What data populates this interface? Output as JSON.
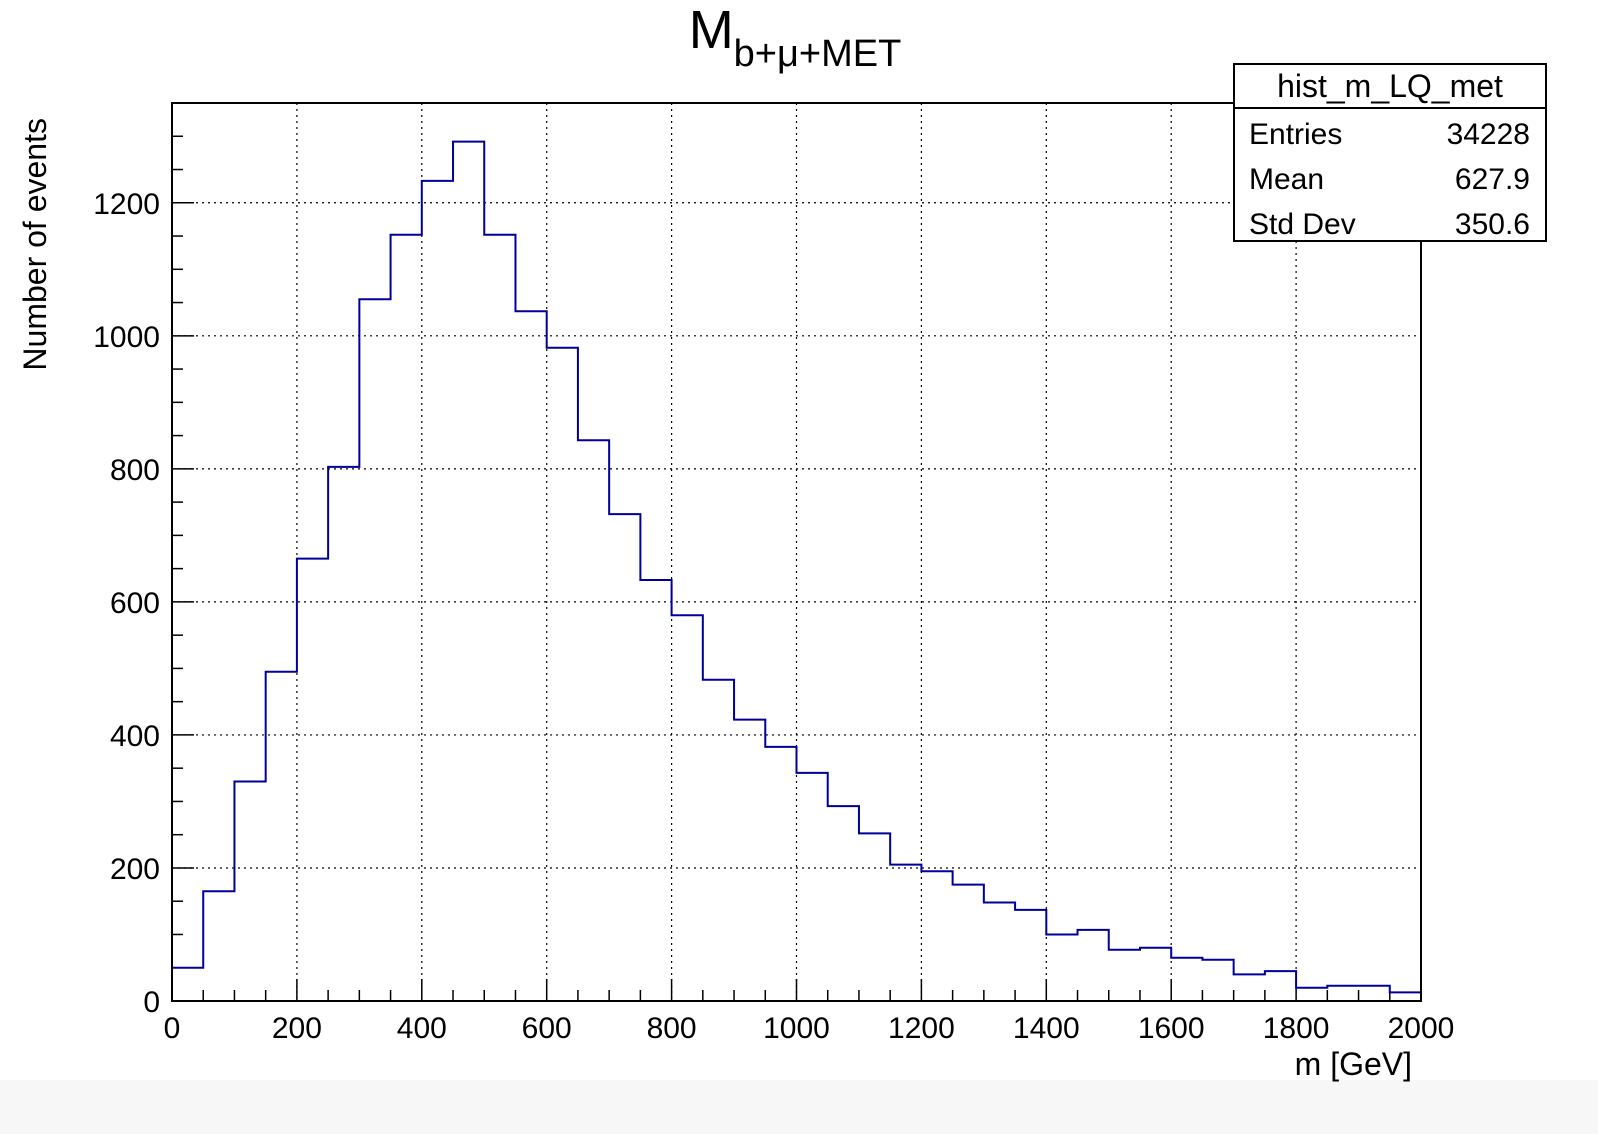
{
  "chart_data": {
    "type": "histogram",
    "title": "M",
    "title_subscript": "b+μ+MET",
    "xlabel": "m [GeV]",
    "ylabel": "Number of events",
    "xlim": [
      0,
      2000
    ],
    "ylim": [
      0,
      1350
    ],
    "grid": true,
    "x_ticks": [
      0,
      200,
      400,
      600,
      800,
      1000,
      1200,
      1400,
      1600,
      1800,
      2000
    ],
    "x_tick_labels": [
      "0",
      "200",
      "400",
      "600",
      "800",
      "1000",
      "1200",
      "1400",
      "1600",
      "1800",
      "2000"
    ],
    "y_ticks": [
      0,
      200,
      400,
      600,
      800,
      1000,
      1200
    ],
    "y_tick_labels": [
      "0",
      "200",
      "400",
      "600",
      "800",
      "1000",
      "1200"
    ],
    "bin_edges": [
      0,
      50,
      100,
      150,
      200,
      250,
      300,
      350,
      400,
      450,
      500,
      550,
      600,
      650,
      700,
      750,
      800,
      850,
      900,
      950,
      1000,
      1050,
      1100,
      1150,
      1200,
      1250,
      1300,
      1350,
      1400,
      1450,
      1500,
      1550,
      1600,
      1650,
      1700,
      1750,
      1800,
      1850,
      1900,
      1950,
      2000
    ],
    "values": [
      50,
      165,
      330,
      495,
      665,
      803,
      1055,
      1152,
      1233,
      1292,
      1152,
      1037,
      982,
      843,
      732,
      633,
      580,
      483,
      423,
      382,
      343,
      293,
      252,
      205,
      195,
      175,
      148,
      137,
      100,
      107,
      77,
      80,
      65,
      62,
      40,
      45,
      20,
      23,
      23,
      13
    ],
    "line_color": "#000099",
    "stats_box": {
      "name": "hist_m_LQ_met",
      "rows": [
        {
          "label": "Entries",
          "value": "34228"
        },
        {
          "label": "Mean",
          "value": "627.9"
        },
        {
          "label": "Std Dev",
          "value": "350.6"
        }
      ]
    }
  }
}
